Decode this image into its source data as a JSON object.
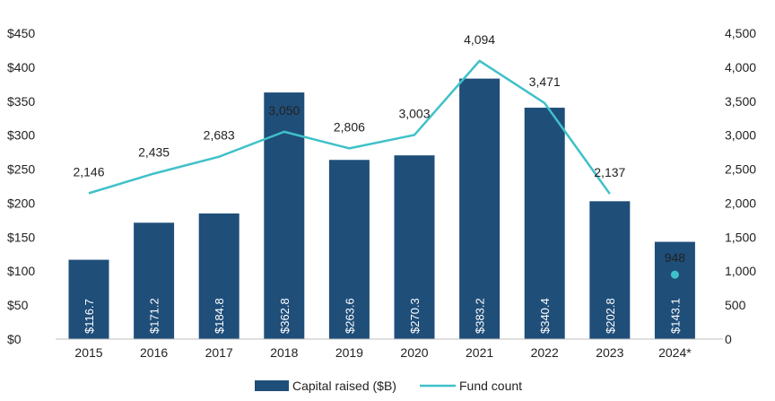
{
  "chart_data": {
    "type": "bar",
    "categories": [
      "2015",
      "2016",
      "2017",
      "2018",
      "2019",
      "2020",
      "2021",
      "2022",
      "2023",
      "2024*"
    ],
    "series": [
      {
        "name": "Capital raised ($B)",
        "type": "bar",
        "axis": "left",
        "color": "#1f4e79",
        "values": [
          116.7,
          171.2,
          184.8,
          362.8,
          263.6,
          270.3,
          383.2,
          340.4,
          202.8,
          143.1
        ],
        "labels": [
          "$116.7",
          "$171.2",
          "$184.8",
          "$362.8",
          "$263.6",
          "$270.3",
          "$383.2",
          "$340.4",
          "$202.8",
          "$143.1"
        ]
      },
      {
        "name": "Fund count",
        "type": "line",
        "axis": "right",
        "color": "#3fc1c9",
        "values": [
          2146,
          2435,
          2683,
          3050,
          2806,
          3003,
          4094,
          3471,
          2137,
          948
        ],
        "labels": [
          "2,146",
          "2,435",
          "2,683",
          "3,050",
          "2,806",
          "3,003",
          "4,094",
          "3,471",
          "2,137",
          "948"
        ],
        "line_breaks_before_last": true
      }
    ],
    "y_left": {
      "range": [
        0,
        450
      ],
      "ticks": [
        0,
        50,
        100,
        150,
        200,
        250,
        300,
        350,
        400,
        450
      ],
      "tick_labels": [
        "$0",
        "$50",
        "$100",
        "$150",
        "$200",
        "$250",
        "$300",
        "$350",
        "$400",
        "$450"
      ]
    },
    "y_right": {
      "range": [
        0,
        4500
      ],
      "ticks": [
        0,
        500,
        1000,
        1500,
        2000,
        2500,
        3000,
        3500,
        4000,
        4500
      ],
      "tick_labels": [
        "0",
        "500",
        "1,000",
        "1,500",
        "2,000",
        "2,500",
        "3,000",
        "3,500",
        "4,000",
        "4,500"
      ]
    },
    "grid": false,
    "legend": {
      "position": "bottom-center",
      "entries": [
        "Capital raised ($B)",
        "Fund count"
      ]
    }
  }
}
